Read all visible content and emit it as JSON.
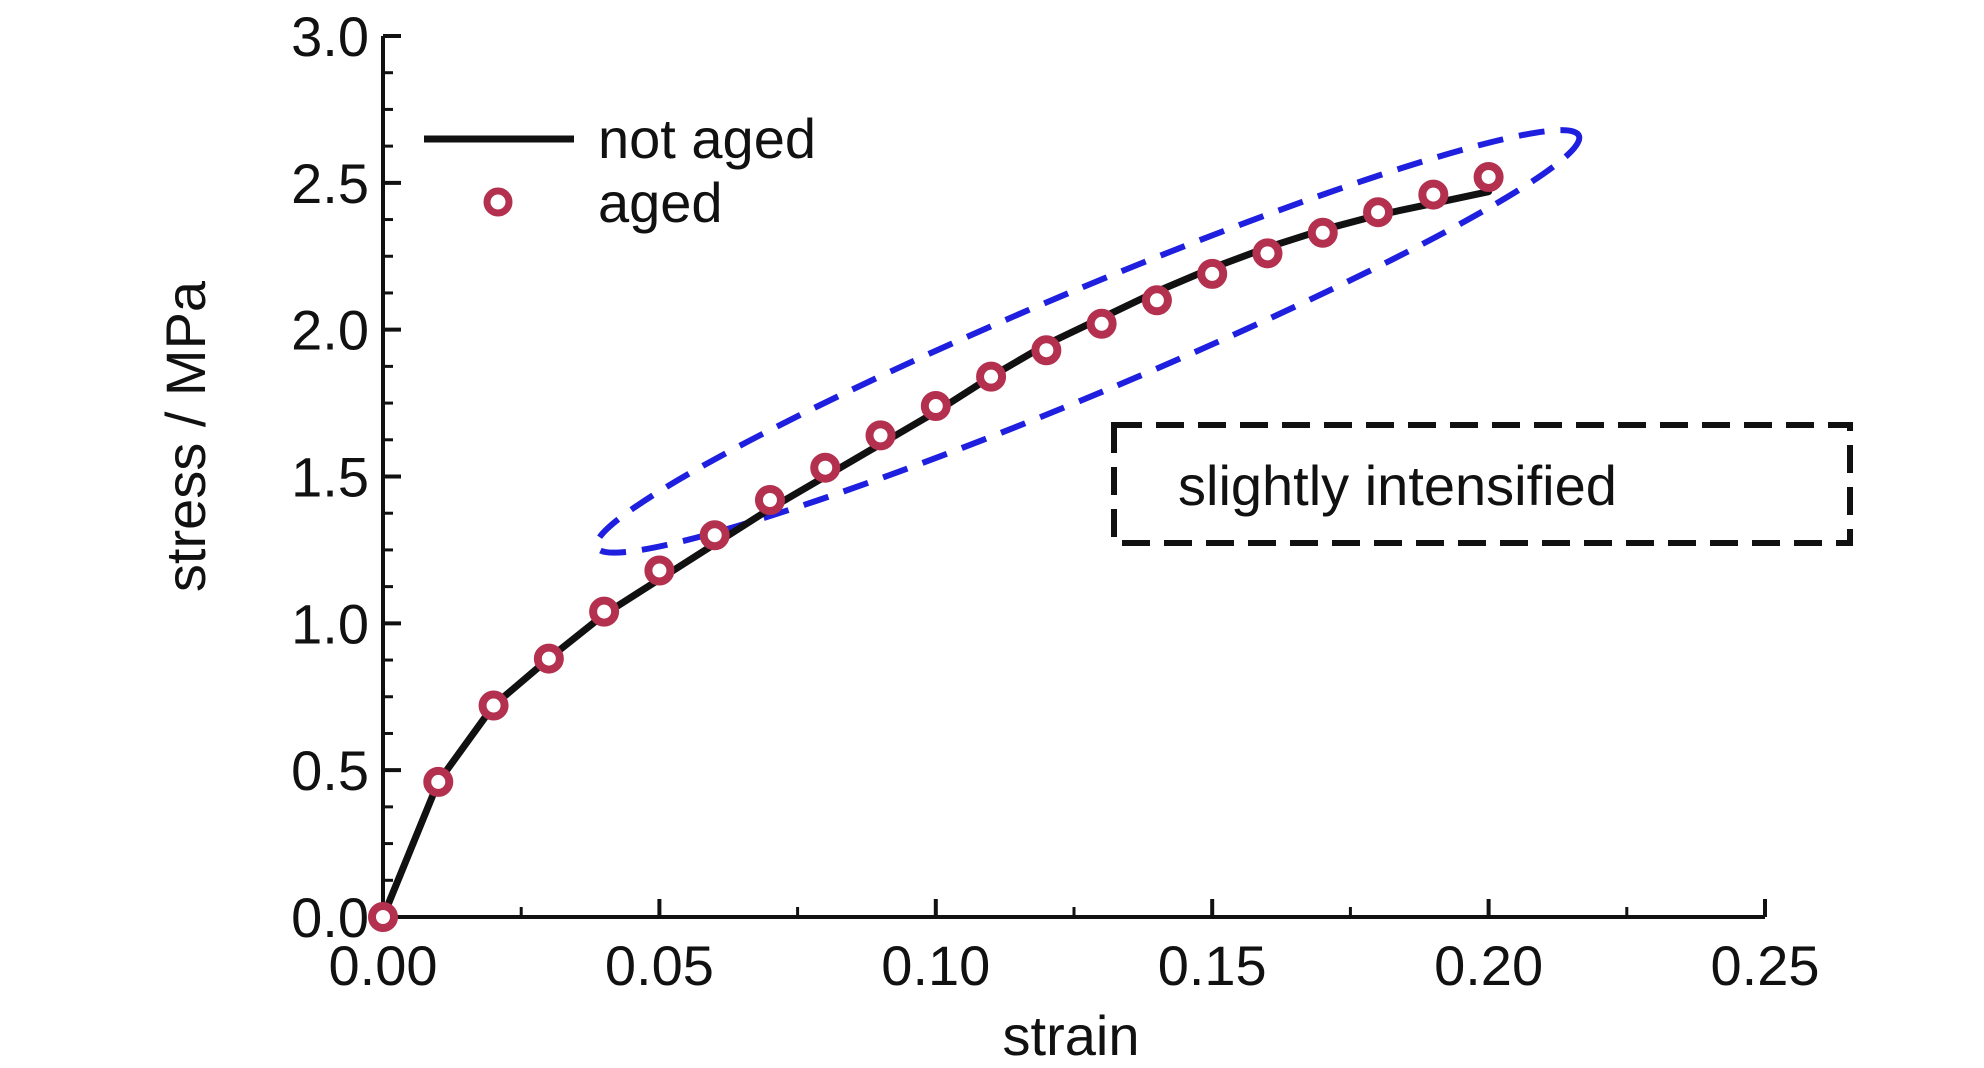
{
  "chart_data": {
    "type": "line",
    "xlabel": "strain",
    "ylabel": "stress / MPa",
    "xlim": [
      0.0,
      0.25
    ],
    "ylim": [
      0.0,
      3.0
    ],
    "xticks": [
      "0.00",
      "0.05",
      "0.10",
      "0.15",
      "0.20",
      "0.25"
    ],
    "xtick_values": [
      0.0,
      0.05,
      0.1,
      0.15,
      0.2,
      0.25
    ],
    "yticks": [
      "0.0",
      "0.5",
      "1.0",
      "1.5",
      "2.0",
      "2.5",
      "3.0"
    ],
    "ytick_values": [
      0.0,
      0.5,
      1.0,
      1.5,
      2.0,
      2.5,
      3.0
    ],
    "grid": false,
    "legend_position": "top-left",
    "series": [
      {
        "name": "not aged",
        "style": "line",
        "color": "#111111",
        "x": [
          0.0,
          0.01,
          0.02,
          0.03,
          0.04,
          0.05,
          0.06,
          0.07,
          0.08,
          0.09,
          0.1,
          0.11,
          0.12,
          0.13,
          0.14,
          0.15,
          0.16,
          0.17,
          0.18,
          0.19,
          0.2
        ],
        "y": [
          0.0,
          0.46,
          0.72,
          0.88,
          1.03,
          1.15,
          1.27,
          1.39,
          1.5,
          1.61,
          1.72,
          1.84,
          1.95,
          2.04,
          2.13,
          2.21,
          2.28,
          2.34,
          2.39,
          2.43,
          2.47
        ]
      },
      {
        "name": "aged",
        "style": "marker",
        "color": "#b3304f",
        "x": [
          0.0,
          0.01,
          0.02,
          0.03,
          0.04,
          0.05,
          0.06,
          0.07,
          0.08,
          0.09,
          0.1,
          0.11,
          0.12,
          0.13,
          0.14,
          0.15,
          0.16,
          0.17,
          0.18,
          0.19,
          0.2
        ],
        "y": [
          0.0,
          0.46,
          0.72,
          0.88,
          1.04,
          1.18,
          1.3,
          1.42,
          1.53,
          1.64,
          1.74,
          1.84,
          1.93,
          2.02,
          2.1,
          2.19,
          2.26,
          2.33,
          2.4,
          2.46,
          2.52
        ]
      }
    ],
    "annotations": [
      {
        "type": "dashed-ellipse",
        "color": "#1f1fe0",
        "x_range": [
          0.04,
          0.215
        ],
        "y_range": [
          1.27,
          2.65
        ]
      },
      {
        "type": "dashed-box",
        "color": "#111111",
        "text": "slightly intensified"
      }
    ]
  }
}
